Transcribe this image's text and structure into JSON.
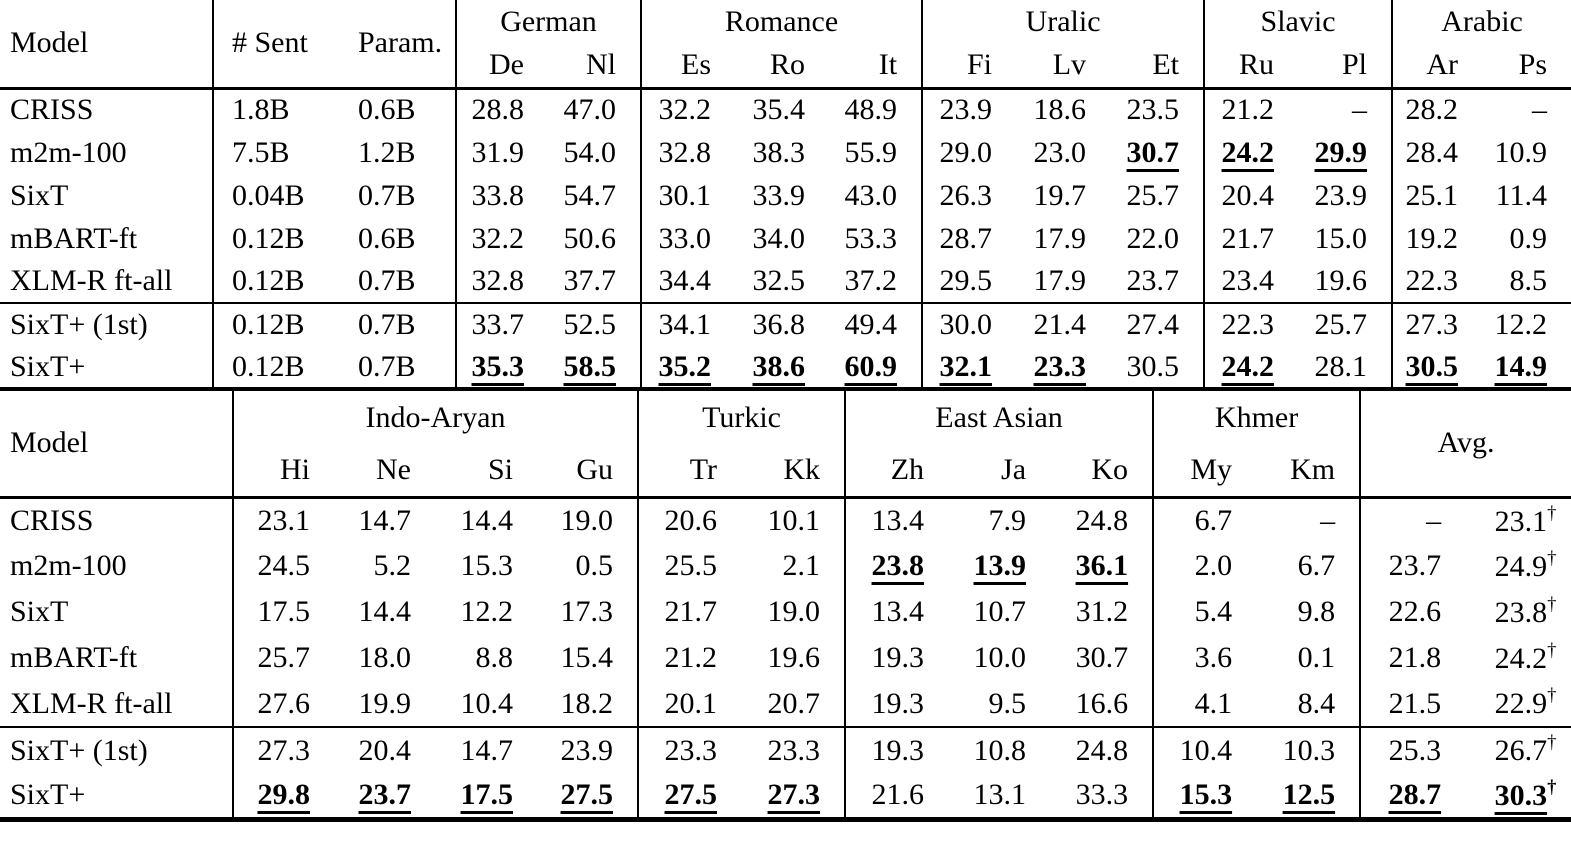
{
  "page": {
    "background": "#ffffff",
    "text_color": "#000000"
  },
  "table_top": {
    "model_header": "Model",
    "stat_headers": [
      "# Sent",
      "Param."
    ],
    "groups": [
      {
        "label": "German",
        "cols": [
          "De",
          "Nl"
        ]
      },
      {
        "label": "Romance",
        "cols": [
          "Es",
          "Ro",
          "It"
        ]
      },
      {
        "label": "Uralic",
        "cols": [
          "Fi",
          "Lv",
          "Et"
        ]
      },
      {
        "label": "Slavic",
        "cols": [
          "Ru",
          "Pl"
        ]
      },
      {
        "label": "Arabic",
        "cols": [
          "Ar",
          "Ps"
        ]
      }
    ],
    "section_start": 5,
    "rows": [
      {
        "model": "CRISS",
        "stats": [
          "1.8B",
          "0.6B"
        ],
        "values": [
          "28.8",
          "47.0",
          "32.2",
          "35.4",
          "48.9",
          "23.9",
          "18.6",
          "23.5",
          "21.2",
          "–",
          "28.2",
          "–"
        ],
        "bold": []
      },
      {
        "model": "m2m-100",
        "stats": [
          "7.5B",
          "1.2B"
        ],
        "values": [
          "31.9",
          "54.0",
          "32.8",
          "38.3",
          "55.9",
          "29.0",
          "23.0",
          "30.7",
          "24.2",
          "29.9",
          "28.4",
          "10.9"
        ],
        "bold": [
          7,
          8,
          9
        ]
      },
      {
        "model": "SixT",
        "stats": [
          "0.04B",
          "0.7B"
        ],
        "values": [
          "33.8",
          "54.7",
          "30.1",
          "33.9",
          "43.0",
          "26.3",
          "19.7",
          "25.7",
          "20.4",
          "23.9",
          "25.1",
          "11.4"
        ],
        "bold": []
      },
      {
        "model": "mBART-ft",
        "stats": [
          "0.12B",
          "0.6B"
        ],
        "values": [
          "32.2",
          "50.6",
          "33.0",
          "34.0",
          "53.3",
          "28.7",
          "17.9",
          "22.0",
          "21.7",
          "15.0",
          "19.2",
          "0.9"
        ],
        "bold": []
      },
      {
        "model": "XLM-R ft-all",
        "stats": [
          "0.12B",
          "0.7B"
        ],
        "values": [
          "32.8",
          "37.7",
          "34.4",
          "32.5",
          "37.2",
          "29.5",
          "17.9",
          "23.7",
          "23.4",
          "19.6",
          "22.3",
          "8.5"
        ],
        "bold": []
      },
      {
        "model": "SixT+ (1st)",
        "stats": [
          "0.12B",
          "0.7B"
        ],
        "values": [
          "33.7",
          "52.5",
          "34.1",
          "36.8",
          "49.4",
          "30.0",
          "21.4",
          "27.4",
          "22.3",
          "25.7",
          "27.3",
          "12.2"
        ],
        "bold": []
      },
      {
        "model": "SixT+",
        "stats": [
          "0.12B",
          "0.7B"
        ],
        "values": [
          "35.3",
          "58.5",
          "35.2",
          "38.6",
          "60.9",
          "32.1",
          "23.3",
          "30.5",
          "24.2",
          "28.1",
          "30.5",
          "14.9"
        ],
        "bold": [
          0,
          1,
          2,
          3,
          4,
          5,
          6,
          8,
          10,
          11
        ]
      }
    ]
  },
  "table_bottom": {
    "model_header": "Model",
    "groups": [
      {
        "label": "Indo-Aryan",
        "cols": [
          "Hi",
          "Ne",
          "Si",
          "Gu"
        ]
      },
      {
        "label": "Turkic",
        "cols": [
          "Tr",
          "Kk"
        ]
      },
      {
        "label": "East Asian",
        "cols": [
          "Zh",
          "Ja",
          "Ko"
        ]
      },
      {
        "label": "Khmer",
        "cols": [
          "My",
          "Km"
        ]
      },
      {
        "label": "Avg.",
        "cols": [],
        "span": 2
      }
    ],
    "dagger": "†",
    "dagger_cols": [
      12
    ],
    "section_start": 5,
    "rows": [
      {
        "model": "CRISS",
        "values": [
          "23.1",
          "14.7",
          "14.4",
          "19.0",
          "20.6",
          "10.1",
          "13.4",
          "7.9",
          "24.8",
          "6.7",
          "–",
          "–",
          "23.1"
        ],
        "bold": []
      },
      {
        "model": "m2m-100",
        "values": [
          "24.5",
          "5.2",
          "15.3",
          "0.5",
          "25.5",
          "2.1",
          "23.8",
          "13.9",
          "36.1",
          "2.0",
          "6.7",
          "23.7",
          "24.9"
        ],
        "bold": [
          6,
          7,
          8
        ]
      },
      {
        "model": "SixT",
        "values": [
          "17.5",
          "14.4",
          "12.2",
          "17.3",
          "21.7",
          "19.0",
          "13.4",
          "10.7",
          "31.2",
          "5.4",
          "9.8",
          "22.6",
          "23.8"
        ],
        "bold": []
      },
      {
        "model": "mBART-ft",
        "values": [
          "25.7",
          "18.0",
          "8.8",
          "15.4",
          "21.2",
          "19.6",
          "19.3",
          "10.0",
          "30.7",
          "3.6",
          "0.1",
          "21.8",
          "24.2"
        ],
        "bold": []
      },
      {
        "model": "XLM-R ft-all",
        "values": [
          "27.6",
          "19.9",
          "10.4",
          "18.2",
          "20.1",
          "20.7",
          "19.3",
          "9.5",
          "16.6",
          "4.1",
          "8.4",
          "21.5",
          "22.9"
        ],
        "bold": []
      },
      {
        "model": "SixT+ (1st)",
        "values": [
          "27.3",
          "20.4",
          "14.7",
          "23.9",
          "23.3",
          "23.3",
          "19.3",
          "10.8",
          "24.8",
          "10.4",
          "10.3",
          "25.3",
          "26.7"
        ],
        "bold": []
      },
      {
        "model": "SixT+",
        "values": [
          "29.8",
          "23.7",
          "17.5",
          "27.5",
          "27.5",
          "27.3",
          "21.6",
          "13.1",
          "33.3",
          "15.3",
          "12.5",
          "28.7",
          "30.3"
        ],
        "bold": [
          0,
          1,
          2,
          3,
          4,
          5,
          9,
          10,
          11,
          12
        ]
      }
    ]
  }
}
